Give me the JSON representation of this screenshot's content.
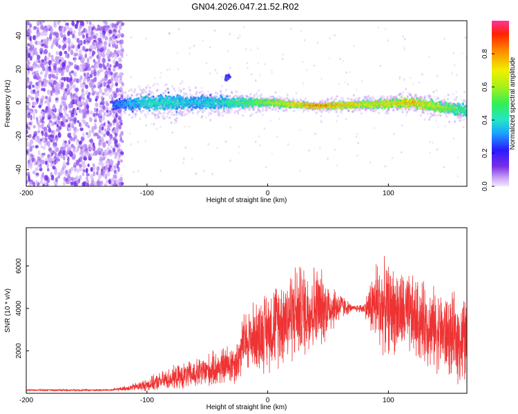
{
  "figure_title": "GN04.2026.047.21.52.R02",
  "chart_data": [
    {
      "type": "heatmap",
      "title": "GN04.2026.047.21.52.R02",
      "xlabel": "Height of straight line (km)",
      "ylabel": "Frequency (Hz)",
      "xlim": [
        -200,
        165
      ],
      "ylim": [
        -50,
        49
      ],
      "xticks": [
        -200,
        -100,
        0,
        100
      ],
      "yticks": [
        -40,
        -20,
        0,
        20,
        40
      ],
      "colorbar": {
        "label": "Normalized spectral amplitude",
        "range": [
          0.0,
          1.0
        ],
        "ticks": [
          0.0,
          0.2,
          0.4,
          0.6,
          0.8
        ],
        "tick_labels": [
          "0.0",
          "0.2",
          "0.4",
          "0.6",
          "0.8"
        ]
      },
      "features": [
        {
          "kind": "noise",
          "x_range": [
            -200,
            -128
          ],
          "y_range": [
            -50,
            49
          ],
          "amplitude": 0.15
        },
        {
          "kind": "signal_band",
          "x": [
            -128,
            -100,
            -80,
            -60,
            -40,
            0,
            40,
            80,
            120,
            165
          ],
          "center": [
            -1,
            0,
            0,
            0,
            0,
            0,
            -2,
            -1,
            0,
            -5
          ],
          "halfwidth": [
            4,
            6,
            7,
            5,
            5,
            3,
            2,
            3,
            4,
            5
          ],
          "peak_amplitude": [
            0.3,
            0.45,
            0.45,
            0.4,
            0.45,
            0.65,
            0.95,
            0.75,
            0.85,
            0.5
          ]
        },
        {
          "kind": "blob",
          "x": -33,
          "y": 15,
          "amplitude": 0.35
        }
      ]
    },
    {
      "type": "line",
      "xlabel": "Height of straight line (km)",
      "ylabel": "SNR (10 * v/v)",
      "xlim": [
        -200,
        165
      ],
      "ylim": [
        0,
        7800
      ],
      "xticks": [
        -200,
        -100,
        0,
        100
      ],
      "yticks": [
        2000,
        4000,
        6000
      ],
      "color": "#ee3333",
      "envelope": {
        "x": [
          -200,
          -130,
          -115,
          -100,
          -80,
          -60,
          -40,
          -25,
          -20,
          0,
          20,
          40,
          60,
          70,
          80,
          90,
          110,
          130,
          150,
          165
        ],
        "mid": [
          150,
          150,
          250,
          400,
          700,
          900,
          1200,
          1500,
          2400,
          3000,
          3800,
          4000,
          4100,
          4000,
          4000,
          4200,
          3800,
          3300,
          2700,
          2400
        ],
        "amp": [
          40,
          60,
          150,
          350,
          600,
          800,
          1000,
          1200,
          1600,
          2200,
          2600,
          2400,
          800,
          150,
          300,
          2500,
          2300,
          2200,
          2200,
          2500
        ]
      }
    }
  ]
}
